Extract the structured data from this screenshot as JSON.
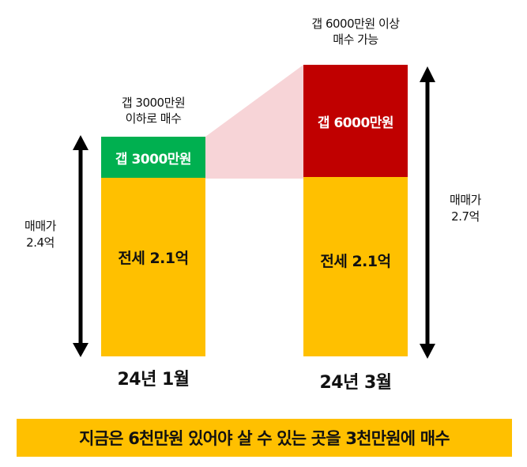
{
  "colors": {
    "yellow": "#FFC000",
    "green": "#00B050",
    "red": "#C00000",
    "pink": "#F2B8BD",
    "footer_bg": "#FFC000",
    "arrow": "#000000"
  },
  "left_column": {
    "caption_line1": "갭 3000만원",
    "caption_line2": "이하로 매수",
    "gap_label": "갭 3000만원",
    "jeonse_label": "전세 2.1억",
    "date_label": "24년 1월",
    "price_line1": "매매가",
    "price_line2": "2.4억"
  },
  "right_column": {
    "caption_line1": "갭 6000만원 이상",
    "caption_line2": "매수 가능",
    "gap_label": "갭 6000만원",
    "jeonse_label": "전세 2.1억",
    "date_label": "24년 3월",
    "price_line1": "매매가",
    "price_line2": "2.7억"
  },
  "footer": {
    "text": "지금은 6천만원 있어야 살 수 있는 곳을 3천만원에 매수"
  }
}
